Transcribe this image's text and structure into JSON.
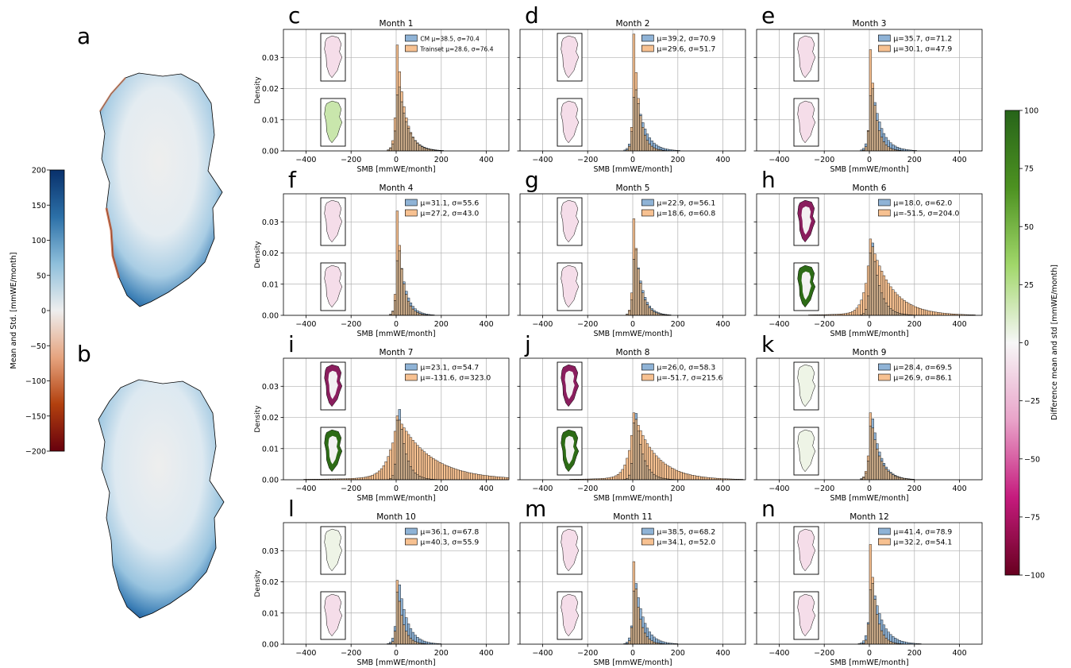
{
  "colors": {
    "cm": "#8fb3d6",
    "trainset": "#f7c191",
    "overlap": "#c6a786",
    "grid": "#b0b0b0",
    "mean_std_cmap": [
      "#67000d",
      "#b2400e",
      "#e6a47f",
      "#eeeeee",
      "#8ebfdb",
      "#2c70a8",
      "#08306b"
    ],
    "diff_cmap": [
      "#67001f",
      "#c51b7d",
      "#e9a3c9",
      "#f7f7f7",
      "#a1d76a",
      "#4d9221",
      "#276419"
    ]
  },
  "panel_a": {
    "letter": "a"
  },
  "panel_b": {
    "letter": "b"
  },
  "left_colorbar": {
    "label": "Mean and Std. [mmWE/month]",
    "ticks": [
      "200",
      "150",
      "100",
      "50",
      "0",
      "−50",
      "−100",
      "−150",
      "−200"
    ]
  },
  "right_colorbar": {
    "label": "Difference mean and std [mmWE/month]",
    "ticks": [
      "100",
      "75",
      "50",
      "25",
      "0",
      "−25",
      "−50",
      "−75",
      "−100"
    ]
  },
  "chart_data": [
    {
      "letter": "c",
      "title": "Month 1",
      "type": "bar",
      "xlabel": "SMB [mmWE/month]",
      "ylabel": "Density",
      "xlim": [
        -500,
        500
      ],
      "ylim": [
        0,
        0.039
      ],
      "xticks": [
        "−400",
        "−200",
        "0",
        "200",
        "400"
      ],
      "yticks": [
        "0.00",
        "0.01",
        "0.02",
        "0.03"
      ],
      "grid": true,
      "legend": "top-right",
      "series": [
        {
          "name": "CM μ=38.5, σ=70.4",
          "mean": 38.5,
          "std": 70.4,
          "peak_density": 0.0245
        },
        {
          "name": "Trainset μ=28.6, σ=76.4",
          "mean": 28.6,
          "std": 76.4,
          "peak_density": 0.034
        }
      ],
      "inset_mean_tint": "pink",
      "inset_std_tint": "lightgreen"
    },
    {
      "letter": "d",
      "title": "Month 2",
      "type": "bar",
      "xlabel": "SMB [mmWE/month]",
      "ylabel": "",
      "xlim": [
        -500,
        500
      ],
      "ylim": [
        0,
        0.039
      ],
      "xticks": [
        "−400",
        "−200",
        "0",
        "200",
        "400"
      ],
      "yticks": [],
      "grid": true,
      "legend": "top-right",
      "series": [
        {
          "name": "μ=39.2, σ=70.9",
          "mean": 39.2,
          "std": 70.9,
          "peak_density": 0.0235
        },
        {
          "name": "μ=29.6, σ=51.7",
          "mean": 29.6,
          "std": 51.7,
          "peak_density": 0.0375
        }
      ],
      "inset_mean_tint": "pink",
      "inset_std_tint": "pink"
    },
    {
      "letter": "e",
      "title": "Month 3",
      "type": "bar",
      "xlabel": "SMB [mmWE/month]",
      "ylabel": "",
      "xlim": [
        -500,
        500
      ],
      "ylim": [
        0,
        0.039
      ],
      "xticks": [
        "−400",
        "−200",
        "0",
        "200",
        "400"
      ],
      "yticks": [],
      "grid": true,
      "legend": "top-right",
      "series": [
        {
          "name": "μ=35.7, σ=71.2",
          "mean": 35.7,
          "std": 71.2,
          "peak_density": 0.024
        },
        {
          "name": "μ=30.1, σ=47.9",
          "mean": 30.1,
          "std": 47.9,
          "peak_density": 0.0325
        }
      ],
      "inset_mean_tint": "pink",
      "inset_std_tint": "pink"
    },
    {
      "letter": "f",
      "title": "Month 4",
      "type": "bar",
      "xlabel": "SMB [mmWE/month]",
      "ylabel": "Density",
      "xlim": [
        -500,
        500
      ],
      "ylim": [
        0,
        0.039
      ],
      "xticks": [
        "−400",
        "−200",
        "0",
        "200",
        "400"
      ],
      "yticks": [
        "0.00",
        "0.01",
        "0.02",
        "0.03"
      ],
      "grid": true,
      "legend": "top-right",
      "series": [
        {
          "name": "μ=31.1, σ=55.6",
          "mean": 31.1,
          "std": 55.6,
          "peak_density": 0.026
        },
        {
          "name": "μ=27.2, σ=43.0",
          "mean": 27.2,
          "std": 43.0,
          "peak_density": 0.0335
        }
      ],
      "inset_mean_tint": "pink",
      "inset_std_tint": "pink"
    },
    {
      "letter": "g",
      "title": "Month 5",
      "type": "bar",
      "xlabel": "SMB [mmWE/month]",
      "ylabel": "",
      "xlim": [
        -500,
        500
      ],
      "ylim": [
        0,
        0.039
      ],
      "xticks": [
        "−400",
        "−200",
        "0",
        "200",
        "400"
      ],
      "yticks": [],
      "grid": true,
      "legend": "top-right",
      "series": [
        {
          "name": "μ=22.9, σ=56.1",
          "mean": 22.9,
          "std": 56.1,
          "peak_density": 0.0265
        },
        {
          "name": "μ=18.6, σ=60.8",
          "mean": 18.6,
          "std": 60.8,
          "peak_density": 0.031
        }
      ],
      "inset_mean_tint": "pink",
      "inset_std_tint": "pink"
    },
    {
      "letter": "h",
      "title": "Month 6",
      "type": "bar",
      "xlabel": "SMB [mmWE/month]",
      "ylabel": "",
      "xlim": [
        -500,
        500
      ],
      "ylim": [
        0,
        0.039
      ],
      "xticks": [
        "−400",
        "−200",
        "0",
        "200",
        "400"
      ],
      "yticks": [],
      "grid": true,
      "legend": "top-right",
      "series": [
        {
          "name": "μ=18.0, σ=62.0",
          "mean": 18.0,
          "std": 62.0,
          "peak_density": 0.0285
        },
        {
          "name": "μ=-51.5, σ=204.0",
          "mean": -51.5,
          "std": 204.0,
          "peak_density": 0.0245
        }
      ],
      "inset_mean_tint": "magenta",
      "inset_std_tint": "darkgreen"
    },
    {
      "letter": "i",
      "title": "Month 7",
      "type": "bar",
      "xlabel": "SMB [mmWE/month]",
      "ylabel": "Density",
      "xlim": [
        -500,
        500
      ],
      "ylim": [
        0,
        0.039
      ],
      "xticks": [
        "−400",
        "−200",
        "0",
        "200",
        "400"
      ],
      "yticks": [
        "0.00",
        "0.01",
        "0.02",
        "0.03"
      ],
      "grid": true,
      "legend": "top-right",
      "series": [
        {
          "name": "μ=23.1, σ=54.7",
          "mean": 23.1,
          "std": 54.7,
          "peak_density": 0.0285
        },
        {
          "name": "μ=-131.6, σ=323.0",
          "mean": -131.6,
          "std": 323.0,
          "peak_density": 0.0205
        }
      ],
      "inset_mean_tint": "magenta",
      "inset_std_tint": "darkgreen"
    },
    {
      "letter": "j",
      "title": "Month 8",
      "type": "bar",
      "xlabel": "SMB [mmWE/month]",
      "ylabel": "",
      "xlim": [
        -500,
        500
      ],
      "ylim": [
        0,
        0.039
      ],
      "xticks": [
        "−400",
        "−200",
        "0",
        "200",
        "400"
      ],
      "yticks": [],
      "grid": true,
      "legend": "top-right",
      "series": [
        {
          "name": "μ=26.0, σ=58.3",
          "mean": 26.0,
          "std": 58.3,
          "peak_density": 0.0265
        },
        {
          "name": "μ=-51.7, σ=215.6",
          "mean": -51.7,
          "std": 215.6,
          "peak_density": 0.0215
        }
      ],
      "inset_mean_tint": "magenta",
      "inset_std_tint": "darkgreen"
    },
    {
      "letter": "k",
      "title": "Month 9",
      "type": "bar",
      "xlabel": "SMB [mmWE/month]",
      "ylabel": "",
      "xlim": [
        -500,
        500
      ],
      "ylim": [
        0,
        0.039
      ],
      "xticks": [
        "−400",
        "−200",
        "0",
        "200",
        "400"
      ],
      "yticks": [],
      "grid": true,
      "legend": "top-right",
      "series": [
        {
          "name": "μ=28.4, σ=69.5",
          "mean": 28.4,
          "std": 69.5,
          "peak_density": 0.0235
        },
        {
          "name": "μ=26.9, σ=86.1",
          "mean": 26.9,
          "std": 86.1,
          "peak_density": 0.0215
        }
      ],
      "inset_mean_tint": "paleGreen",
      "inset_std_tint": "paleGreen"
    },
    {
      "letter": "l",
      "title": "Month 10",
      "type": "bar",
      "xlabel": "SMB [mmWE/month]",
      "ylabel": "Density",
      "xlim": [
        -500,
        500
      ],
      "ylim": [
        0,
        0.039
      ],
      "xticks": [
        "−400",
        "−200",
        "0",
        "200",
        "400"
      ],
      "yticks": [
        "0.00",
        "0.01",
        "0.02",
        "0.03"
      ],
      "grid": true,
      "legend": "top-right",
      "series": [
        {
          "name": "μ=36.1, σ=67.8",
          "mean": 36.1,
          "std": 67.8,
          "peak_density": 0.023
        },
        {
          "name": "μ=40.3, σ=55.9",
          "mean": 40.3,
          "std": 55.9,
          "peak_density": 0.0205
        }
      ],
      "inset_mean_tint": "paleGreen",
      "inset_std_tint": "pink"
    },
    {
      "letter": "m",
      "title": "Month 11",
      "type": "bar",
      "xlabel": "SMB [mmWE/month]",
      "ylabel": "",
      "xlim": [
        -500,
        500
      ],
      "ylim": [
        0,
        0.039
      ],
      "xticks": [
        "−400",
        "−200",
        "0",
        "200",
        "400"
      ],
      "yticks": [],
      "grid": true,
      "legend": "top-right",
      "series": [
        {
          "name": "μ=38.5, σ=68.2",
          "mean": 38.5,
          "std": 68.2,
          "peak_density": 0.0235
        },
        {
          "name": "μ=34.1, σ=52.0",
          "mean": 34.1,
          "std": 52.0,
          "peak_density": 0.0265
        }
      ],
      "inset_mean_tint": "pink",
      "inset_std_tint": "pink"
    },
    {
      "letter": "n",
      "title": "Month 12",
      "type": "bar",
      "xlabel": "SMB [mmWE/month]",
      "ylabel": "",
      "xlim": [
        -500,
        500
      ],
      "ylim": [
        0,
        0.039
      ],
      "xticks": [
        "−400",
        "−200",
        "0",
        "200",
        "400"
      ],
      "yticks": [],
      "grid": true,
      "legend": "top-right",
      "series": [
        {
          "name": "μ=41.4, σ=78.9",
          "mean": 41.4,
          "std": 78.9,
          "peak_density": 0.023
        },
        {
          "name": "μ=32.2, σ=54.1",
          "mean": 32.2,
          "std": 54.1,
          "peak_density": 0.032
        }
      ],
      "inset_mean_tint": "pink",
      "inset_std_tint": "pink"
    }
  ]
}
